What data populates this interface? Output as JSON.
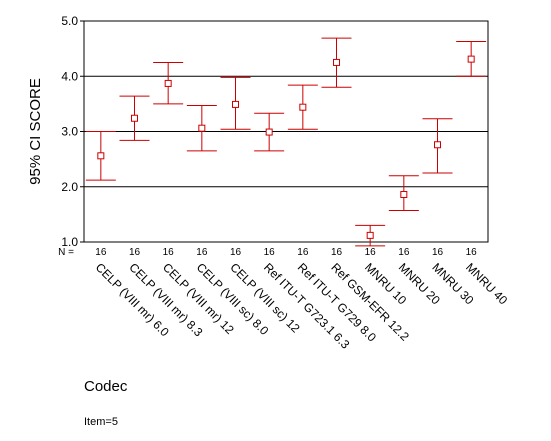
{
  "chart_data": {
    "type": "error-bar",
    "xlabel": "Codec",
    "ylabel": "95% CI SCORE",
    "ylim": [
      1.0,
      5.0
    ],
    "yticks": [
      "1.0",
      "2.0",
      "3.0",
      "4.0",
      "5.0"
    ],
    "gridlines_at": [
      2.0,
      3.0,
      4.0
    ],
    "n_label": "N =",
    "categories": [
      "CELP (VIII mr) 6.0",
      "CELP (VIII mr) 8.3",
      "CELP (VIII mr) 12",
      "CELP (VIII sc) 8.0",
      "CELP (VIII sc) 12",
      "Ref ITU-T G723.1 6.3",
      "Ref ITU-T G729 8.0",
      "Ref GSM-EFR 12.2",
      "MNRU 10",
      "MNRU 20",
      "MNRU 30",
      "MNRU 40"
    ],
    "n": [
      "16",
      "16",
      "16",
      "16",
      "16",
      "16",
      "16",
      "16",
      "16",
      "16",
      "16",
      "16"
    ],
    "means": [
      2.56,
      3.24,
      3.87,
      3.06,
      3.49,
      2.99,
      3.44,
      4.25,
      1.12,
      1.86,
      2.76,
      4.31
    ],
    "lower": [
      2.12,
      2.84,
      3.5,
      2.65,
      3.04,
      2.65,
      3.04,
      3.8,
      0.93,
      1.57,
      2.25,
      4.0
    ],
    "upper": [
      3.0,
      3.64,
      4.25,
      3.47,
      3.98,
      3.33,
      3.84,
      4.69,
      1.3,
      2.2,
      3.23,
      4.63
    ],
    "series_color": "#cc0000"
  },
  "footnote": "Item=5"
}
